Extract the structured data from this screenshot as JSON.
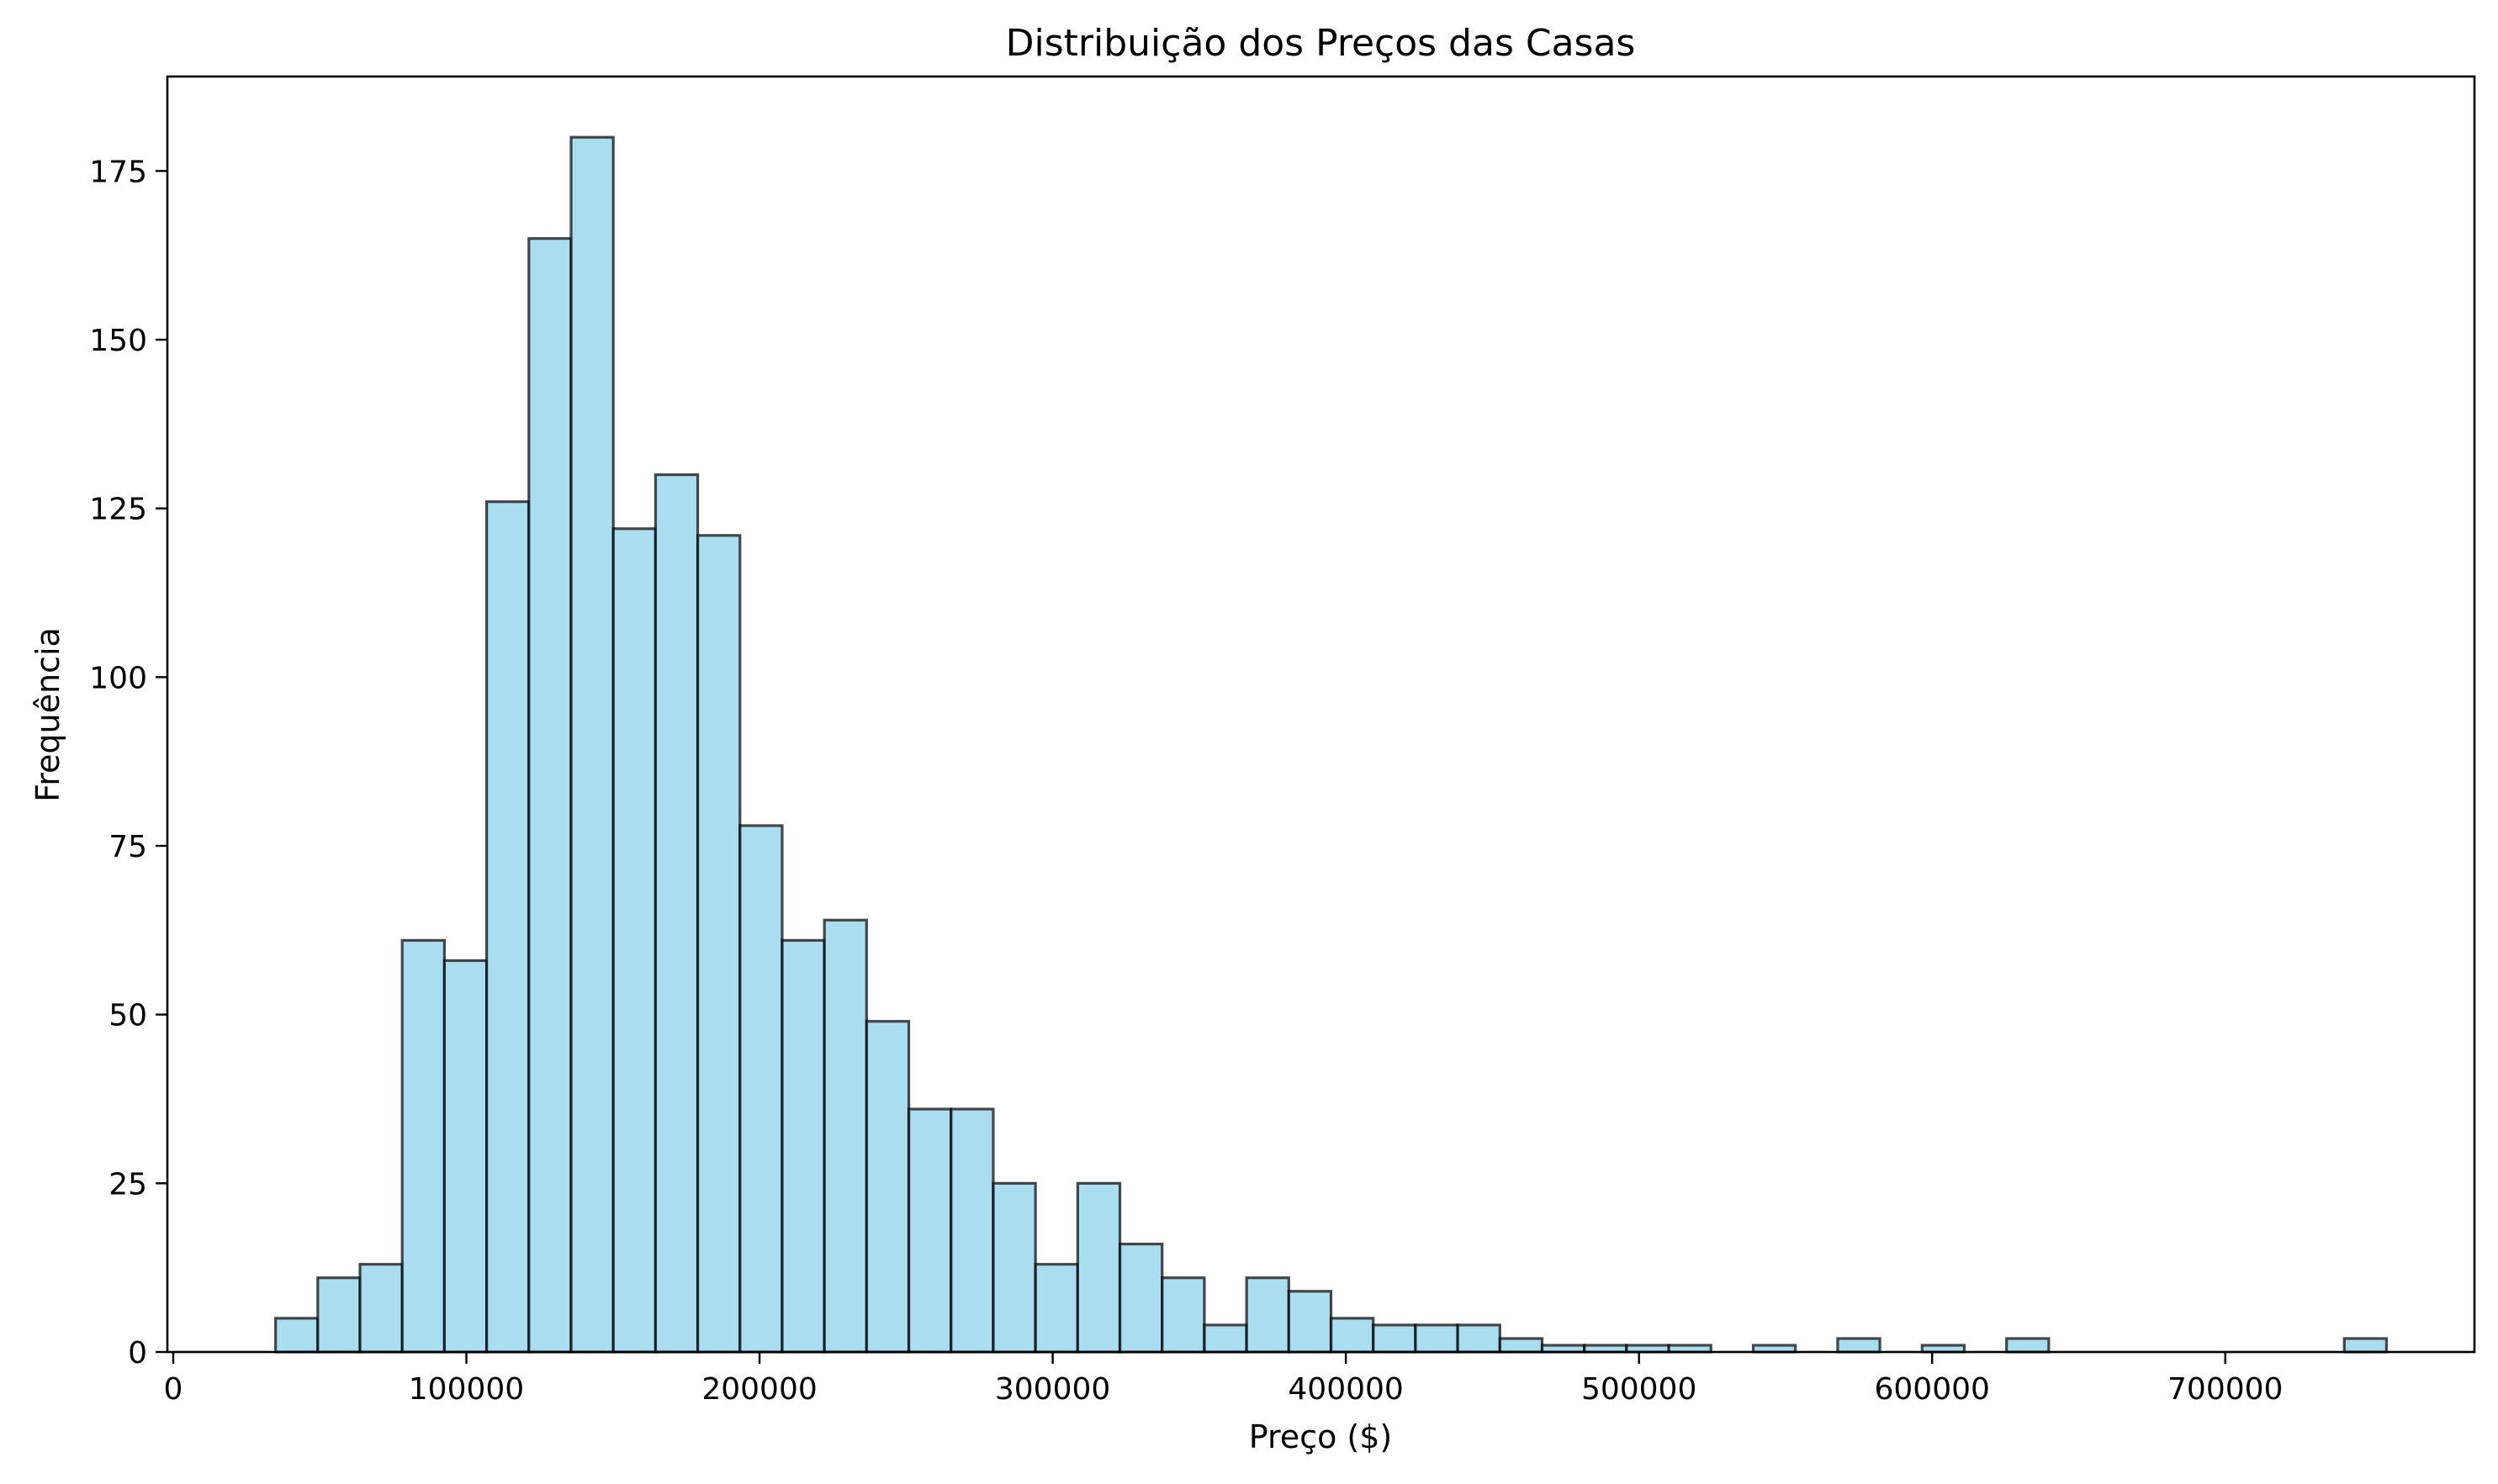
{
  "chart_data": {
    "type": "bar",
    "title": "Distribuição dos Preços das Casas",
    "xlabel": "Preço ($)",
    "ylabel": "Frequência",
    "xlim": [
      -2000,
      785000
    ],
    "ylim": [
      0,
      189
    ],
    "x_ticks": [
      0,
      100000,
      200000,
      300000,
      400000,
      500000,
      600000,
      700000
    ],
    "x_tick_labels": [
      "0",
      "100000",
      "200000",
      "300000",
      "400000",
      "500000",
      "600000",
      "700000"
    ],
    "y_ticks": [
      0,
      25,
      50,
      75,
      100,
      125,
      150,
      175
    ],
    "y_tick_labels": [
      "0",
      "25",
      "50",
      "75",
      "100",
      "125",
      "150",
      "175"
    ],
    "grid": false,
    "bin_edges": [
      34900,
      49302,
      63704,
      78106,
      92508,
      106910,
      121312,
      135714,
      150116,
      164518,
      178920,
      193322,
      207724,
      222126,
      236528,
      250930,
      265332,
      279734,
      294136,
      308538,
      322940,
      337342,
      351744,
      366146,
      380548,
      394950,
      409352,
      423754,
      438156,
      452558,
      466960,
      481362,
      495764,
      510166,
      524568,
      538970,
      553372,
      567774,
      582176,
      596578,
      610980,
      625382,
      639784,
      654186,
      668588,
      682990,
      697392,
      711794,
      726196,
      740598,
      755000
    ],
    "values": [
      5,
      11,
      13,
      61,
      58,
      126,
      165,
      180,
      122,
      130,
      121,
      78,
      61,
      64,
      49,
      36,
      36,
      25,
      13,
      25,
      16,
      11,
      4,
      11,
      9,
      5,
      4,
      4,
      4,
      2,
      1,
      1,
      1,
      1,
      0,
      1,
      0,
      2,
      0,
      1,
      0,
      2,
      0,
      0,
      0,
      0,
      0,
      0,
      0,
      2
    ]
  }
}
